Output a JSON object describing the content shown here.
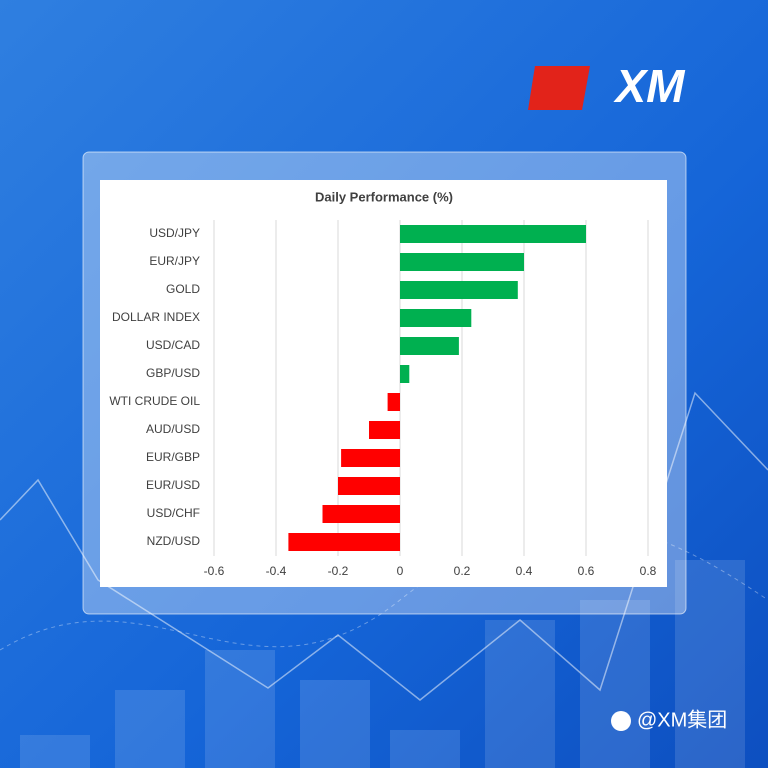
{
  "logo": "XM",
  "watermark": "@XM集团",
  "chart_data": {
    "type": "bar",
    "orientation": "horizontal",
    "title": "Daily Performance (%)",
    "categories": [
      "USD/JPY",
      "EUR/JPY",
      "GOLD",
      "DOLLAR INDEX",
      "USD/CAD",
      "GBP/USD",
      "WTI CRUDE OIL",
      "AUD/USD",
      "EUR/GBP",
      "EUR/USD",
      "USD/CHF",
      "NZD/USD"
    ],
    "values": [
      0.6,
      0.4,
      0.38,
      0.23,
      0.19,
      0.03,
      -0.04,
      -0.1,
      -0.19,
      -0.2,
      -0.25,
      -0.36
    ],
    "positive_color": "#00b050",
    "negative_color": "#ff0000",
    "xlim": [
      -0.6,
      0.8
    ],
    "xticks": [
      -0.6,
      -0.4,
      -0.2,
      0,
      0.2,
      0.4,
      0.6,
      0.8
    ],
    "grid": true
  }
}
